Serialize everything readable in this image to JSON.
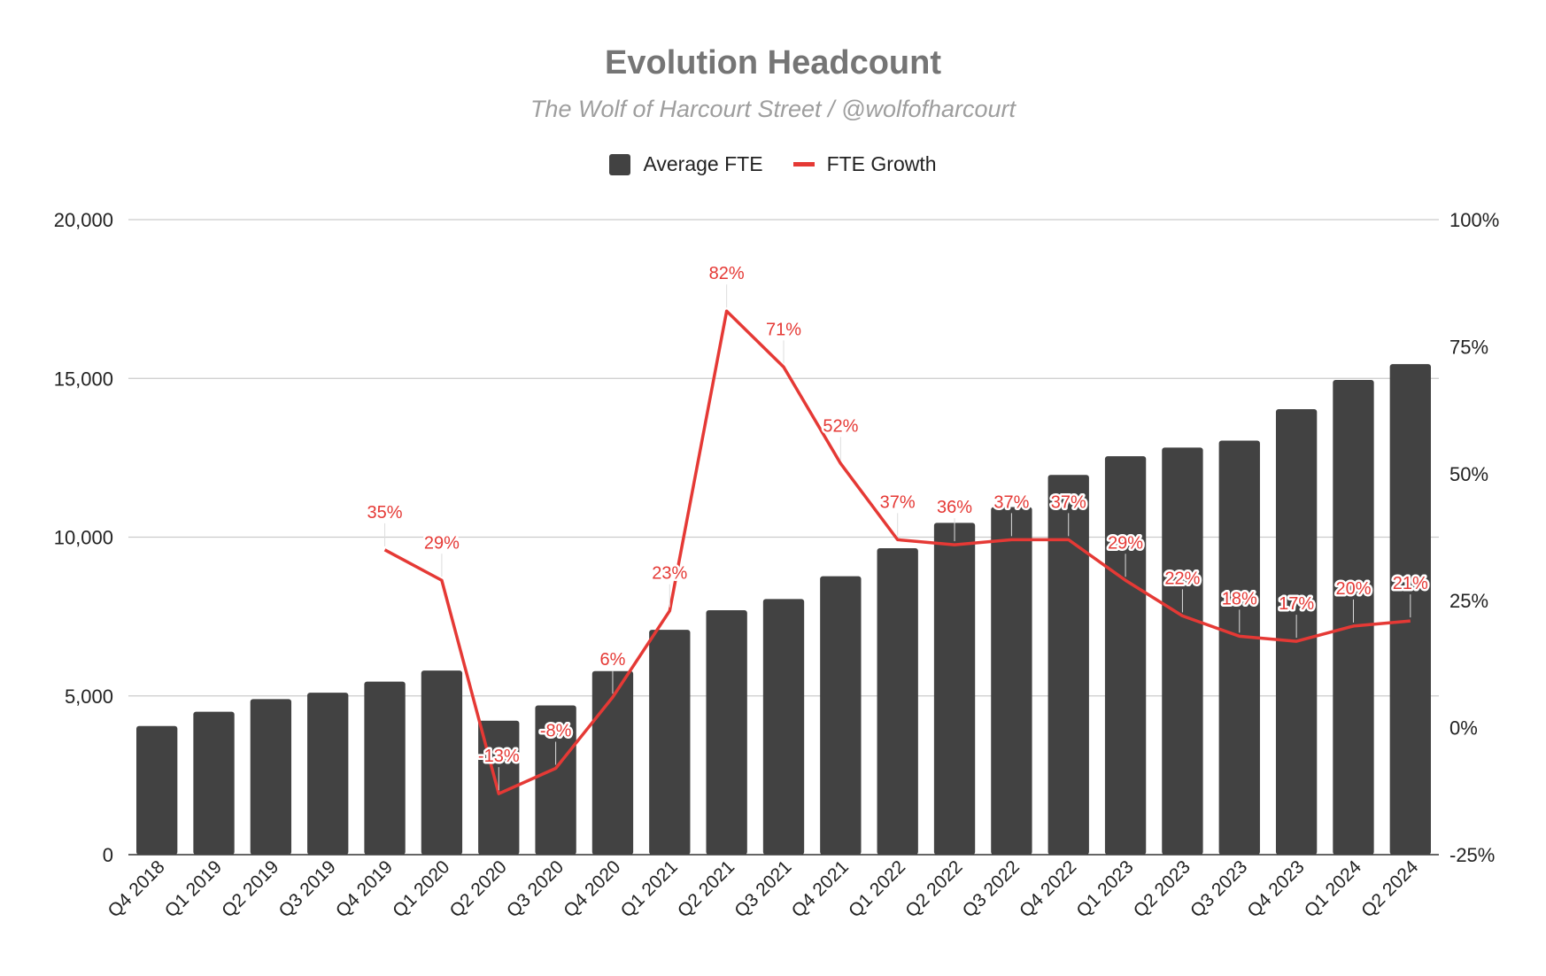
{
  "chart_data": {
    "type": "bar",
    "title": "Evolution Headcount",
    "subtitle": "The Wolf of Harcourt Street / @wolfofharcourt",
    "categories": [
      "Q4 2018",
      "Q1 2019",
      "Q2 2019",
      "Q3 2019",
      "Q4 2019",
      "Q1 2020",
      "Q2 2020",
      "Q3 2020",
      "Q4 2020",
      "Q1 2021",
      "Q2 2021",
      "Q3 2021",
      "Q4 2021",
      "Q1 2022",
      "Q2 2022",
      "Q3 2022",
      "Q4 2022",
      "Q1 2023",
      "Q2 2023",
      "Q3 2023",
      "Q4 2023",
      "Q1 2024",
      "Q2 2024"
    ],
    "series": [
      {
        "name": "Average FTE",
        "type": "bar",
        "axis": "left",
        "color": "#424242",
        "values": [
          4050,
          4500,
          4900,
          5100,
          5450,
          5800,
          4220,
          4700,
          5780,
          7080,
          7700,
          8050,
          8770,
          9650,
          10450,
          10950,
          11960,
          12550,
          12820,
          13040,
          14030,
          14950,
          15450
        ]
      },
      {
        "name": "FTE Growth",
        "type": "line",
        "axis": "right",
        "color": "#e53935",
        "values": [
          null,
          null,
          null,
          null,
          35,
          29,
          -13,
          -8,
          6,
          23,
          82,
          71,
          52,
          37,
          36,
          37,
          37,
          29,
          22,
          18,
          17,
          20,
          21
        ],
        "labels": [
          "",
          "",
          "",
          "",
          "35%",
          "29%",
          "-13%",
          "-8%",
          "6%",
          "23%",
          "82%",
          "71%",
          "52%",
          "37%",
          "36%",
          "37%",
          "37%",
          "29%",
          "22%",
          "18%",
          "17%",
          "20%",
          "21%"
        ]
      }
    ],
    "left_axis": {
      "min": 0,
      "max": 20000,
      "ticks": [
        0,
        5000,
        10000,
        15000,
        20000
      ],
      "tick_labels": [
        "0",
        "5,000",
        "10,000",
        "15,000",
        "20,000"
      ]
    },
    "right_axis": {
      "min": -25,
      "max": 100,
      "ticks": [
        -25,
        0,
        25,
        50,
        75,
        100
      ],
      "tick_labels": [
        "-25%",
        "0%",
        "25%",
        "50%",
        "75%",
        "100%"
      ]
    },
    "legend": {
      "position": "top",
      "entries": [
        "Average FTE",
        "FTE Growth"
      ]
    },
    "grid": true
  }
}
